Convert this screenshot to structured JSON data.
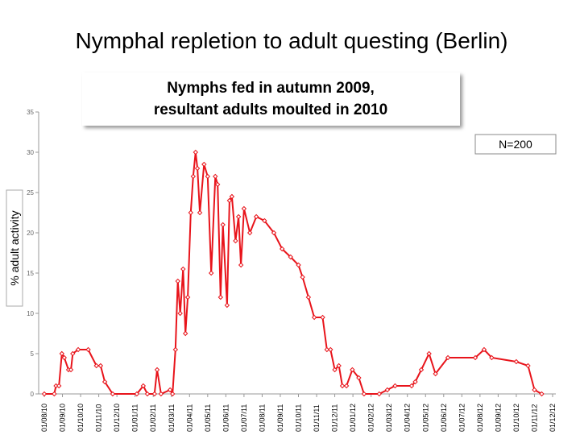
{
  "chart_data": {
    "type": "line",
    "title": "Nymphal repletion to adult questing (Berlin)",
    "box_lines": [
      "Nymphs fed in autumn 2009,",
      "resultant adults moulted in 2010"
    ],
    "annotation": "N=200",
    "y_label": "% adult activity",
    "grid": false,
    "xlim": [
      "01/08/10",
      "01/12/12"
    ],
    "xticks": [
      "01/08/10",
      "01/09/10",
      "01/10/10",
      "01/11/10",
      "01/12/10",
      "01/01/11",
      "01/02/11",
      "01/03/11",
      "01/04/11",
      "01/05/11",
      "01/06/11",
      "01/07/11",
      "01/08/11",
      "01/09/11",
      "01/10/11",
      "01/11/11",
      "01/12/11",
      "01/01/12",
      "01/02/12",
      "01/03/12",
      "01/04/12",
      "01/05/12",
      "01/06/12",
      "01/07/12",
      "01/08/12",
      "01/09/12",
      "01/10/12",
      "01/11/12",
      "01/12/12"
    ],
    "ylim": [
      0,
      35
    ],
    "yticks": [
      0,
      5,
      10,
      15,
      20,
      25,
      30,
      35
    ],
    "x": [
      "01/08/10",
      "18/08/10",
      "21/08/10",
      "26/08/10",
      "31/08/10",
      "04/09/10",
      "11/09/10",
      "15/09/10",
      "18/09/10",
      "27/09/10",
      "14/10/10",
      "28/10/10",
      "04/11/10",
      "11/11/10",
      "24/11/10",
      "04/01/11",
      "15/01/11",
      "22/01/11",
      "03/02/11",
      "07/02/11",
      "13/02/11",
      "27/02/11",
      "03/03/11",
      "08/03/11",
      "12/03/11",
      "16/03/11",
      "21/03/11",
      "25/03/11",
      "29/03/11",
      "03/04/11",
      "07/04/11",
      "11/04/11",
      "14/04/11",
      "18/04/11",
      "25/04/11",
      "01/05/11",
      "07/05/11",
      "14/05/11",
      "18/05/11",
      "23/05/11",
      "27/05/11",
      "03/06/11",
      "07/06/11",
      "11/06/11",
      "17/06/11",
      "22/06/11",
      "26/06/11",
      "01/07/11",
      "11/07/11",
      "22/07/11",
      "05/08/11",
      "21/08/11",
      "04/09/11",
      "18/09/11",
      "01/10/11",
      "08/10/11",
      "18/10/11",
      "28/10/11",
      "11/11/11",
      "18/11/11",
      "24/11/11",
      "01/12/11",
      "08/12/11",
      "14/12/11",
      "21/12/11",
      "31/12/11",
      "11/01/12",
      "20/01/12",
      "14/02/12",
      "27/02/12",
      "11/03/12",
      "08/04/12",
      "14/04/12",
      "24/04/12",
      "07/05/12",
      "18/05/12",
      "08/06/12",
      "24/07/12",
      "08/08/12",
      "21/08/12",
      "01/10/12",
      "21/10/12",
      "01/11/12",
      "13/11/12"
    ],
    "series": [
      {
        "name": "% adult activity",
        "color": "#e8141b",
        "values": [
          0,
          0,
          1,
          1,
          5,
          4.5,
          3,
          3,
          5,
          5.5,
          5.5,
          3.5,
          3.5,
          1.5,
          0,
          0,
          1,
          0,
          0,
          3,
          0,
          0.5,
          0,
          5.5,
          14,
          10,
          15.5,
          7.5,
          12,
          22.5,
          27,
          30,
          28,
          22.5,
          28.5,
          27,
          15,
          27,
          26,
          12,
          21,
          11,
          24,
          24.5,
          19,
          22,
          16,
          23,
          20,
          22,
          21.5,
          20,
          18,
          17,
          16,
          14.5,
          12,
          9.5,
          9.5,
          5.5,
          5.5,
          3,
          3.5,
          1,
          1,
          3,
          2,
          0,
          0,
          0.5,
          1,
          1,
          1.5,
          3,
          5,
          2.5,
          4.5,
          4.5,
          5.5,
          4.5,
          4,
          3.5,
          0.5,
          0
        ]
      }
    ]
  }
}
